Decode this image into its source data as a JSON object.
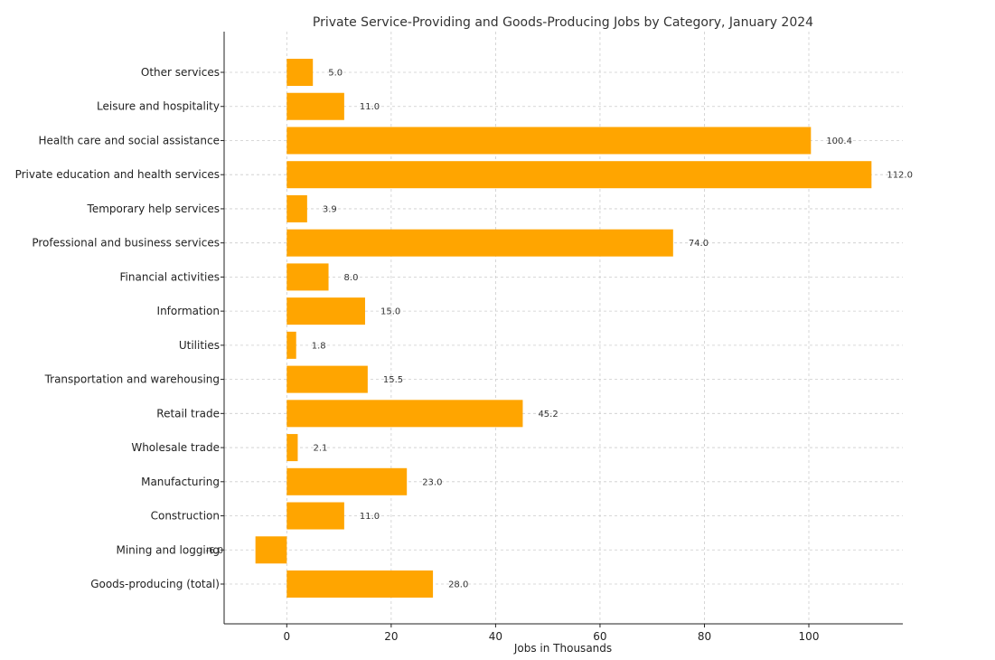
{
  "chart_data": {
    "type": "bar",
    "orientation": "horizontal",
    "title": "Private Service-Providing and Goods-Producing Jobs by Category, January 2024",
    "xlabel": "Jobs in Thousands",
    "ylabel": "",
    "xlim": [
      -12,
      118
    ],
    "xticks": [
      0,
      20,
      40,
      60,
      80,
      100
    ],
    "grid": true,
    "bar_color": "#FFA500",
    "categories": [
      "Goods-producing (total)",
      "Mining and logging",
      "Construction",
      "Manufacturing",
      "Wholesale trade",
      "Retail trade",
      "Transportation and warehousing",
      "Utilities",
      "Information",
      "Financial activities",
      "Professional and business services",
      "Temporary help services",
      "Private education and health services",
      "Health care and social assistance",
      "Leisure and hospitality",
      "Other services"
    ],
    "values": [
      28.0,
      -6.0,
      11.0,
      23.0,
      2.1,
      45.2,
      15.5,
      1.8,
      15.0,
      8.0,
      74.0,
      3.9,
      112.0,
      100.4,
      11.0,
      5.0
    ],
    "data_labels": [
      "28.0",
      "-6.0",
      "11.0",
      "23.0",
      "2.1",
      "45.2",
      "15.5",
      "1.8",
      "15.0",
      "8.0",
      "74.0",
      "3.9",
      "112.0",
      "100.4",
      "11.0",
      "5.0"
    ]
  }
}
